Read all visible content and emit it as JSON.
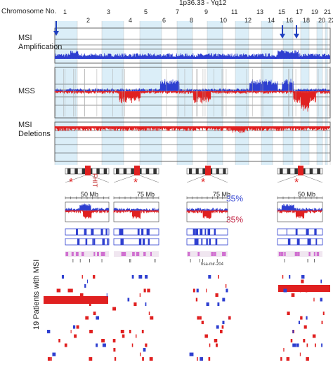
{
  "header": {
    "chromosome_axis_label": "Chromosome No.",
    "locus_range": "1p36.33 - Yq12",
    "chromosome_numbers": [
      "1",
      "2",
      "3",
      "4",
      "5",
      "6",
      "7",
      "8",
      "9",
      "10",
      "11",
      "12",
      "13",
      "14",
      "15",
      "16",
      "17",
      "18",
      "19",
      "20",
      "21",
      "22"
    ]
  },
  "tracks": [
    {
      "label_line1": "MSI",
      "label_line2": "Amplification"
    },
    {
      "label_line1": "MSS",
      "label_line2": ""
    },
    {
      "label_line1": "MSI",
      "label_line2": "Deletions"
    }
  ],
  "zoom_panels": {
    "panel1_position": "50 Mb",
    "panel1_gene": "FHIT",
    "panel2_position": "75 Mb",
    "panel3_position": "75 Mb",
    "panel3_mirna": "hsa-mir-204",
    "panel4_position": "50 Mb",
    "amplification_percent": "35%",
    "deletion_percent": "35%",
    "star": "*"
  },
  "patients": {
    "axis_label": "19 Patients with MSI"
  },
  "colors": {
    "amplification": "#2e3fd0",
    "deletion": "#e02020",
    "alternate_chromosome_band": "#cfe8f6",
    "magenta_track": "#d070d0"
  }
}
